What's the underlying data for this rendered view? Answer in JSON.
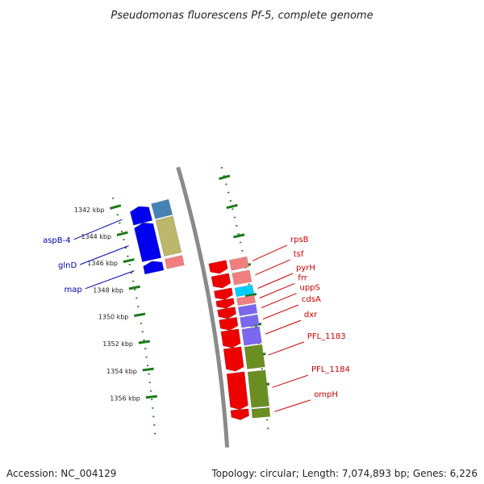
{
  "title": "Pseudomonas fluorescens Pf-5, complete genome",
  "footer": {
    "accession": "Accession: NC_004129",
    "topology": "Topology: circular; Length: 7,074,893 bp; Genes: 6,226"
  },
  "colors": {
    "backbone": "#8a8a8a",
    "tick": "#1a7a1a",
    "reverse_strand": "#0000ee",
    "forward_strand": "#ee0000",
    "reverse_label": "#0000aa",
    "forward_label": "#cc0000",
    "cog_olive": "#6b8e23",
    "cog_khaki": "#bdb76b",
    "cog_purple": "#7b68ee",
    "cog_cyan": "#00ccff",
    "cog_pink": "#f08080",
    "cog_steel": "#4682b4"
  },
  "ticks": [
    {
      "label": "1342 kbp",
      "kbp": 1342
    },
    {
      "label": "1344 kbp",
      "kbp": 1344
    },
    {
      "label": "1346 kbp",
      "kbp": 1346
    },
    {
      "label": "1348 kbp",
      "kbp": 1348
    },
    {
      "label": "1350 kbp",
      "kbp": 1350
    },
    {
      "label": "1352 kbp",
      "kbp": 1352
    },
    {
      "label": "1354 kbp",
      "kbp": 1354
    },
    {
      "label": "1356 kbp",
      "kbp": 1356
    }
  ],
  "genes": [
    {
      "name": "aspB-4",
      "strand": "reverse",
      "start_kbp": 1342.4,
      "end_kbp": 1343.6,
      "cog": "steel"
    },
    {
      "name": "glnD",
      "strand": "reverse",
      "start_kbp": 1343.6,
      "end_kbp": 1346.3,
      "cog": "khaki"
    },
    {
      "name": "map",
      "strand": "reverse",
      "start_kbp": 1346.4,
      "end_kbp": 1347.2,
      "cog": "pink"
    },
    {
      "name": "rpsB",
      "strand": "forward",
      "start_kbp": 1347.4,
      "end_kbp": 1348.2,
      "cog": "pink"
    },
    {
      "name": "tsf",
      "strand": "forward",
      "start_kbp": 1348.3,
      "end_kbp": 1349.2,
      "cog": "pink"
    },
    {
      "name": "pyrH",
      "strand": "forward",
      "start_kbp": 1349.3,
      "end_kbp": 1350.0,
      "cog": "cyan"
    },
    {
      "name": "frr",
      "strand": "forward",
      "start_kbp": 1350.0,
      "end_kbp": 1350.6,
      "cog": "pink"
    },
    {
      "name": "uppS",
      "strand": "forward",
      "start_kbp": 1350.6,
      "end_kbp": 1351.3,
      "cog": "purple"
    },
    {
      "name": "cdsA",
      "strand": "forward",
      "start_kbp": 1351.3,
      "end_kbp": 1352.1,
      "cog": "purple"
    },
    {
      "name": "dxr",
      "strand": "forward",
      "start_kbp": 1352.1,
      "end_kbp": 1353.3,
      "cog": "purple"
    },
    {
      "name": "PFL_1183",
      "strand": "forward",
      "start_kbp": 1353.3,
      "end_kbp": 1354.9,
      "cog": "olive"
    },
    {
      "name": "PFL_1184",
      "strand": "forward",
      "start_kbp": 1355.0,
      "end_kbp": 1357.5,
      "cog": "olive"
    },
    {
      "name": "ompH",
      "strand": "forward",
      "start_kbp": 1357.5,
      "end_kbp": 1358.2,
      "cog": "olive"
    }
  ]
}
